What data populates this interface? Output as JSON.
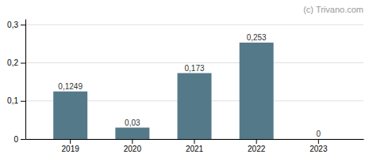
{
  "chart_data": {
    "type": "bar",
    "annotations": [
      "(c) Trivano.com"
    ],
    "categories": [
      "2019",
      "2020",
      "2021",
      "2022",
      "2023"
    ],
    "values": [
      0.1249,
      0.03,
      0.173,
      0.253,
      0
    ],
    "value_labels": [
      "0,1249",
      "0,03",
      "0,173",
      "0,253",
      "0"
    ],
    "color": "#547a8a",
    "ylim": [
      0,
      0.315
    ],
    "yticks": [
      0,
      {
        "value": 0.1,
        "label": "0,1"
      },
      {
        "value": 0.2,
        "label": "0,2"
      },
      {
        "value": 0.3,
        "label": "0,3"
      }
    ],
    "grid": true,
    "data_labels": true
  }
}
